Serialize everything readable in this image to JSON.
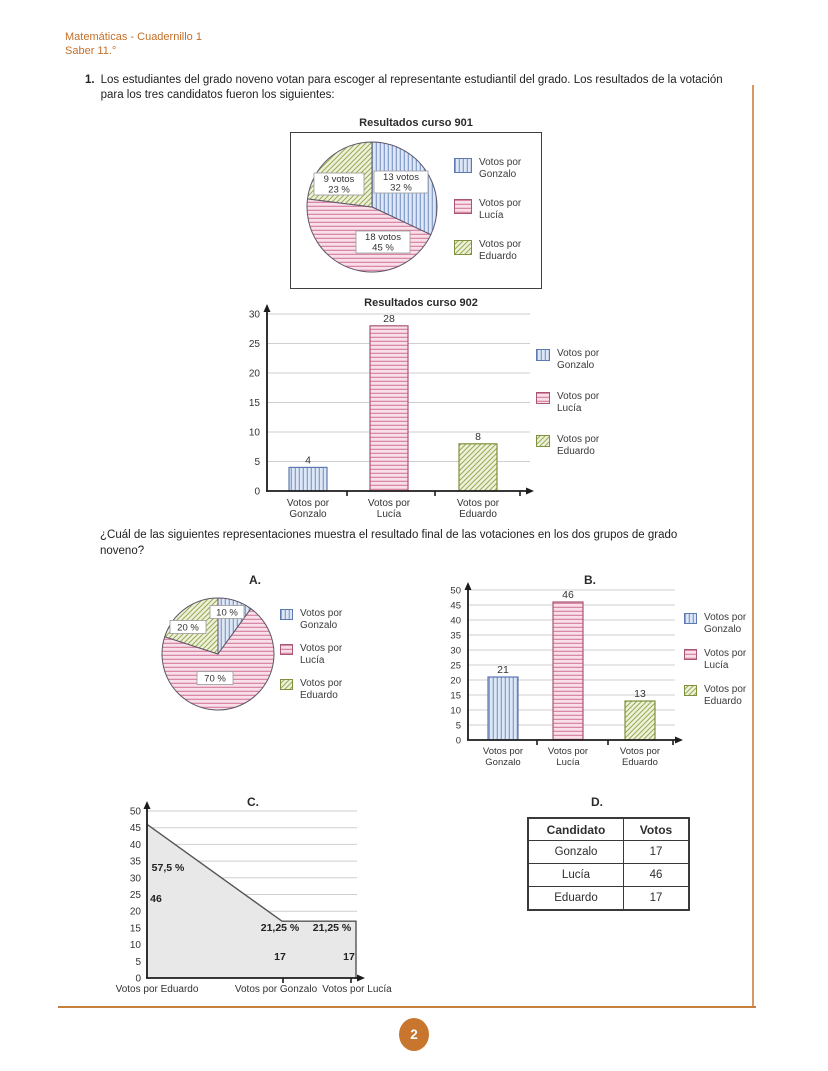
{
  "page": {
    "header_line1": "Matemáticas - Cuadernillo 1",
    "header_line2": "Saber 11.°",
    "page_number": "2",
    "accent_color": "#c8762e",
    "rule_color": "#c77f3e"
  },
  "question": {
    "number": "1.",
    "text": "Los estudiantes del grado noveno votan para escoger al representante estudiantil del grado. Los resultados de la votación para los tres candidatos fueron los siguientes:",
    "prompt": "¿Cuál de las siguientes representaciones muestra el resultado final de las votaciones en los dos grupos de grado noveno?"
  },
  "candidates": [
    {
      "key": "gonzalo",
      "legend_lines": [
        "Votos por",
        "Gonzalo"
      ],
      "pattern": "vertical-stripes",
      "stripe_color": "#7b94c6",
      "bg_color": "#dde7f5",
      "border_color": "#5c79b2"
    },
    {
      "key": "lucia",
      "legend_lines": [
        "Votos por",
        "Lucía"
      ],
      "pattern": "horizontal-stripes",
      "stripe_color": "#d4799a",
      "bg_color": "#f8dfe9",
      "border_color": "#a85673"
    },
    {
      "key": "eduardo",
      "legend_lines": [
        "Votos por",
        "Eduardo"
      ],
      "pattern": "diagonal-stripes",
      "stripe_color": "#98ab52",
      "bg_color": "#eef1dc",
      "border_color": "#7d923e"
    }
  ],
  "chart_data": [
    {
      "id": "curso901",
      "type": "pie",
      "title": "Resultados curso 901",
      "slices": [
        {
          "candidate": "gonzalo",
          "votes": 13,
          "pct": 32,
          "label_lines": [
            "13 votos",
            "32 %"
          ]
        },
        {
          "candidate": "lucia",
          "votes": 18,
          "pct": 45,
          "label_lines": [
            "18 votos",
            "45 %"
          ]
        },
        {
          "candidate": "eduardo",
          "votes": 9,
          "pct": 23,
          "label_lines": [
            "9 votos",
            "23 %"
          ]
        }
      ],
      "legend": [
        "Votos por Gonzalo",
        "Votos por Lucía",
        "Votos por Eduardo"
      ],
      "legend_position": "right"
    },
    {
      "id": "curso902",
      "type": "bar",
      "title": "Resultados curso 902",
      "categories": [
        [
          "Votos por",
          "Gonzalo"
        ],
        [
          "Votos por",
          "Lucía"
        ],
        [
          "Votos por",
          "Eduardo"
        ]
      ],
      "values": [
        4,
        28,
        8
      ],
      "ylim": [
        0,
        30
      ],
      "ytick_step": 5,
      "grid": true,
      "legend": [
        "Votos por Gonzalo",
        "Votos por Lucía",
        "Votos por Eduardo"
      ],
      "legend_position": "right"
    },
    {
      "id": "optionA",
      "type": "pie",
      "option_label": "A.",
      "slices": [
        {
          "candidate": "gonzalo",
          "pct": 10,
          "label_lines": [
            "10 %"
          ]
        },
        {
          "candidate": "lucia",
          "pct": 70,
          "label_lines": [
            "70 %"
          ]
        },
        {
          "candidate": "eduardo",
          "pct": 20,
          "label_lines": [
            "20 %"
          ]
        }
      ],
      "legend": [
        "Votos por Gonzalo",
        "Votos por Lucía",
        "Votos por Eduardo"
      ],
      "legend_position": "right"
    },
    {
      "id": "optionB",
      "type": "bar",
      "option_label": "B.",
      "categories": [
        [
          "Votos por",
          "Gonzalo"
        ],
        [
          "Votos por",
          "Lucía"
        ],
        [
          "Votos por",
          "Eduardo"
        ]
      ],
      "values": [
        21,
        46,
        13
      ],
      "ylim": [
        0,
        50
      ],
      "ytick_step": 5,
      "grid": true,
      "legend": [
        "Votos por Gonzalo",
        "Votos por Lucía",
        "Votos por Eduardo"
      ],
      "legend_position": "right"
    },
    {
      "id": "optionC",
      "type": "area",
      "option_label": "C.",
      "x_labels": [
        "Votos por Eduardo",
        "Votos por Gonzalo",
        "Votos por Lucía"
      ],
      "points": [
        46,
        17,
        17
      ],
      "ylim": [
        0,
        50
      ],
      "ytick_step": 5,
      "grid": true,
      "annotations": [
        "57,5 %",
        "46",
        "21,25 %",
        "21,25 %",
        "17",
        "17"
      ],
      "fill_color": "#e8e8e8"
    },
    {
      "id": "optionD",
      "type": "table",
      "option_label": "D.",
      "headers": [
        "Candidato",
        "Votos"
      ],
      "rows": [
        [
          "Gonzalo",
          "17"
        ],
        [
          "Lucía",
          "46"
        ],
        [
          "Eduardo",
          "17"
        ]
      ]
    }
  ]
}
